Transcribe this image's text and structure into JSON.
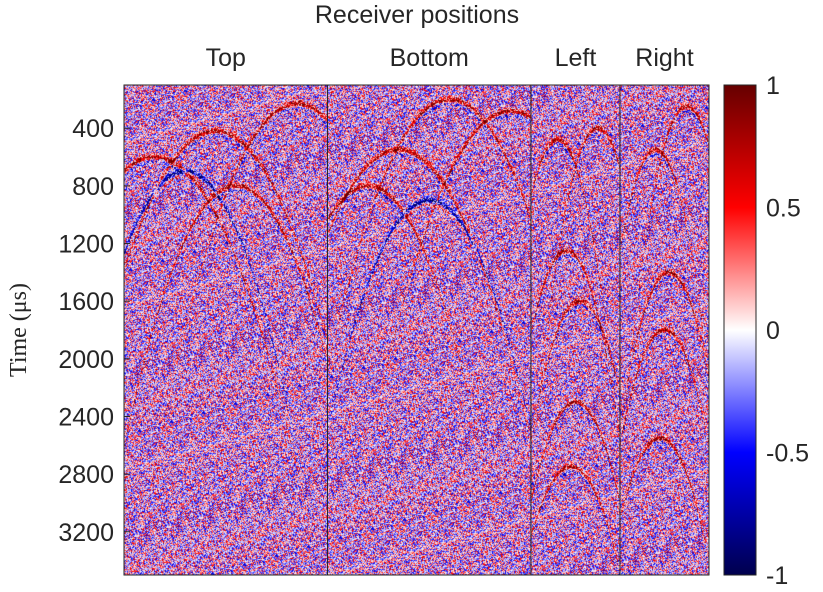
{
  "chart_data": {
    "type": "heatmap",
    "title": "Receiver positions",
    "xlabel": "",
    "ylabel": "Time (μs)",
    "panels": [
      {
        "label": "Top",
        "receivers": 16
      },
      {
        "label": "Bottom",
        "receivers": 16
      },
      {
        "label": "Left",
        "receivers": 7
      },
      {
        "label": "Right",
        "receivers": 7
      }
    ],
    "y_ticks": [
      400,
      800,
      1200,
      1600,
      2000,
      2400,
      2800,
      3200
    ],
    "ylim": [
      100,
      3500
    ],
    "y_reversed": true,
    "colorbar": {
      "ticks": [
        1,
        0.5,
        0,
        -0.5,
        -1
      ],
      "tick_labels": [
        "1",
        "0.5",
        "0",
        "-0.5",
        "-1"
      ],
      "range": [
        -1,
        1
      ],
      "colormap": [
        "#00004d",
        "#0000ff",
        "#ffffff",
        "#ff0000",
        "#660000"
      ]
    },
    "arrivals": [
      {
        "panel": 0,
        "apex_x": 0.45,
        "apex_t": 420,
        "slope": 1200,
        "polarity": 1
      },
      {
        "panel": 0,
        "apex_x": 0.85,
        "apex_t": 230,
        "slope": 1300,
        "polarity": 1
      },
      {
        "panel": 0,
        "apex_x": 0.15,
        "apex_t": 600,
        "slope": 1100,
        "polarity": 1
      },
      {
        "panel": 0,
        "apex_x": 0.55,
        "apex_t": 800,
        "slope": 1500,
        "polarity": 1
      },
      {
        "panel": 0,
        "apex_x": 0.3,
        "apex_t": 700,
        "slope": 1600,
        "polarity": -1
      },
      {
        "panel": 1,
        "apex_x": 0.6,
        "apex_t": 200,
        "slope": 1300,
        "polarity": 1
      },
      {
        "panel": 1,
        "apex_x": 0.9,
        "apex_t": 280,
        "slope": 1200,
        "polarity": 1
      },
      {
        "panel": 1,
        "apex_x": 0.35,
        "apex_t": 550,
        "slope": 1200,
        "polarity": 1
      },
      {
        "panel": 1,
        "apex_x": 0.2,
        "apex_t": 800,
        "slope": 1500,
        "polarity": 1
      },
      {
        "panel": 1,
        "apex_x": 0.5,
        "apex_t": 900,
        "slope": 1600,
        "polarity": -1
      },
      {
        "panel": 2,
        "apex_x": 0.3,
        "apex_t": 480,
        "slope": 1100,
        "polarity": 1
      },
      {
        "panel": 2,
        "apex_x": 0.75,
        "apex_t": 400,
        "slope": 1100,
        "polarity": 1
      },
      {
        "panel": 2,
        "apex_x": 0.4,
        "apex_t": 1250,
        "slope": 900,
        "polarity": 1
      },
      {
        "panel": 2,
        "apex_x": 0.55,
        "apex_t": 1600,
        "slope": 800,
        "polarity": 1
      },
      {
        "panel": 2,
        "apex_x": 0.5,
        "apex_t": 2300,
        "slope": 700,
        "polarity": 1
      },
      {
        "panel": 2,
        "apex_x": 0.45,
        "apex_t": 2750,
        "slope": 600,
        "polarity": 1
      },
      {
        "panel": 3,
        "apex_x": 0.75,
        "apex_t": 250,
        "slope": 1100,
        "polarity": 1
      },
      {
        "panel": 3,
        "apex_x": 0.4,
        "apex_t": 550,
        "slope": 1100,
        "polarity": 1
      },
      {
        "panel": 3,
        "apex_x": 0.55,
        "apex_t": 1400,
        "slope": 900,
        "polarity": 1
      },
      {
        "panel": 3,
        "apex_x": 0.5,
        "apex_t": 1800,
        "slope": 800,
        "polarity": 1
      },
      {
        "panel": 3,
        "apex_x": 0.45,
        "apex_t": 2550,
        "slope": 700,
        "polarity": 1
      }
    ]
  }
}
